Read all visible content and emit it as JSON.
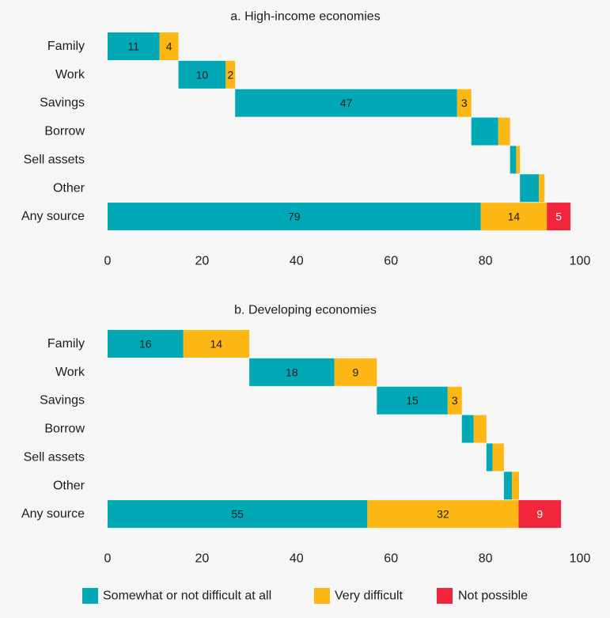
{
  "chart_data": {
    "type": "bar",
    "orientation": "horizontal",
    "stacked": true,
    "grid": false,
    "legend_position": "bottom",
    "series": [
      {
        "name": "Somewhat or not difficult at all",
        "color": "#00a9b5"
      },
      {
        "name": "Very difficult",
        "color": "#fdb714"
      },
      {
        "name": "Not possible",
        "color": "#ef263c"
      }
    ],
    "panels": [
      {
        "title": "a. High-income economies",
        "categories": [
          "Family",
          "Work",
          "Savings",
          "Borrow",
          "Sell assets",
          "Other",
          "Any source"
        ],
        "xlim": [
          0,
          100
        ],
        "xticks": [
          0,
          20,
          40,
          60,
          80,
          100
        ],
        "values": [
          [
            11,
            10,
            47,
            5.7,
            1.3,
            4.0,
            79
          ],
          [
            4,
            2,
            3,
            2.5,
            0.8,
            1.2,
            14
          ],
          [
            0,
            0,
            0,
            0,
            0,
            0,
            5
          ]
        ],
        "labels": [
          [
            "11",
            "10",
            "47",
            "",
            "",
            "",
            "79"
          ],
          [
            "4",
            "2",
            "3",
            "",
            "",
            "",
            "14"
          ],
          [
            "",
            "",
            "",
            "",
            "",
            "",
            "5"
          ]
        ]
      },
      {
        "title": "b. Developing economies",
        "categories": [
          "Family",
          "Work",
          "Savings",
          "Borrow",
          "Sell assets",
          "Other",
          "Any source"
        ],
        "xlim": [
          0,
          100
        ],
        "xticks": [
          0,
          20,
          40,
          60,
          80,
          100
        ],
        "values": [
          [
            16,
            18,
            15,
            2.5,
            1.3,
            1.7,
            55
          ],
          [
            14,
            9,
            3,
            2.7,
            2.4,
            1.5,
            32
          ],
          [
            0,
            0,
            0,
            0,
            0,
            0,
            9
          ]
        ],
        "labels": [
          [
            "16",
            "18",
            "15",
            "",
            "",
            "",
            "55"
          ],
          [
            "14",
            "9",
            "3",
            "",
            "",
            "",
            "32"
          ],
          [
            "",
            "",
            "",
            "",
            "",
            "",
            "9"
          ]
        ]
      }
    ]
  }
}
